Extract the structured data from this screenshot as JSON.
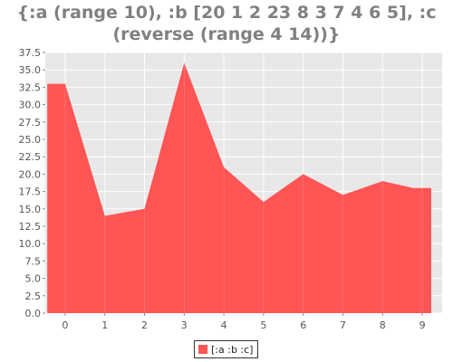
{
  "title_lines": [
    "{:a (range 10), :b [20 1 2 23 8 3 7 4 6 5], :c",
    "(reverse (range 4 14))}"
  ],
  "colors": {
    "series": "#ff5555",
    "plot_bg": "#e8e8e8",
    "grid": "#ffffff",
    "text": "#808080"
  },
  "chart_data": {
    "type": "area",
    "title": "{:a (range 10), :b [20 1 2 23 8 3 7 4 6 5], :c (reverse (range 4 14))}",
    "x": [
      0,
      1,
      2,
      3,
      4,
      5,
      6,
      7,
      8,
      9
    ],
    "xlim": [
      -0.5,
      9.5
    ],
    "x_ticks": [
      "0",
      "1",
      "2",
      "3",
      "4",
      "5",
      "6",
      "7",
      "8",
      "9"
    ],
    "ylim": [
      0,
      37.5
    ],
    "y_ticks": [
      "0.0",
      "2.5",
      "5.0",
      "7.5",
      "10.0",
      "12.5",
      "15.0",
      "17.5",
      "20.0",
      "22.5",
      "25.0",
      "27.5",
      "30.0",
      "32.5",
      "35.0",
      "37.5"
    ],
    "grid": true,
    "legend_position": "bottom-center",
    "series": [
      {
        "name": "[:a :b :c]",
        "values": [
          33,
          14,
          15,
          36,
          21,
          16,
          20,
          17,
          19,
          18
        ]
      }
    ]
  }
}
